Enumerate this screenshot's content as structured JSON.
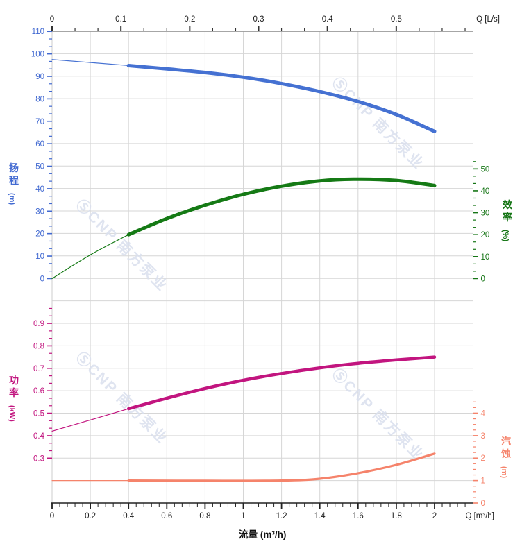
{
  "chart_data": {
    "type": "line",
    "x_bottom": {
      "title": "流量 (m³/h)",
      "corner_label": "Q [m³/h]",
      "ticks": [
        0,
        0.2,
        0.4,
        0.6,
        0.8,
        1,
        1.2,
        1.4,
        1.6,
        1.8,
        2
      ],
      "minor_step": 0.04,
      "range": [
        0,
        2.2
      ]
    },
    "x_top": {
      "corner_label": "Q [L/s]",
      "ticks": [
        0,
        0.1,
        0.2,
        0.3,
        0.4,
        0.5
      ],
      "minor_step": 0.03333,
      "range": [
        0,
        0.6
      ]
    },
    "y_axes": {
      "head": {
        "title": "扬程",
        "unit": "(m)",
        "color": "#4169d1",
        "ticks": [
          0,
          10,
          20,
          30,
          40,
          50,
          60,
          70,
          80,
          90,
          100,
          110
        ],
        "minor_step": 3.3333,
        "minor_range": [
          0,
          110
        ]
      },
      "eff": {
        "title": "效率",
        "unit": "(%)",
        "color": "#157515",
        "ticks": [
          0,
          10,
          20,
          30,
          40,
          50
        ],
        "minor_step": 3.3333,
        "minor_range": [
          0,
          53.4
        ]
      },
      "power": {
        "title": "功率",
        "unit": "(kW)",
        "color": "#c2157f",
        "ticks": [
          0.3,
          0.4,
          0.5,
          0.6,
          0.7,
          0.8,
          0.9
        ],
        "minor_step": 0.03333,
        "minor_range": [
          0.3,
          0.967
        ]
      },
      "npsh": {
        "title": "汽蚀",
        "unit": "(m)",
        "color": "#f5836b",
        "ticks": [
          0,
          1,
          2,
          3,
          4
        ],
        "minor_step": 0.25,
        "minor_range": [
          0,
          4.5
        ]
      }
    },
    "series": [
      {
        "id": "head-curve",
        "axis": "head",
        "color": "#4571d2",
        "width": 5,
        "thin": [
          [
            0,
            97.5
          ],
          [
            0.4,
            94.8
          ]
        ],
        "points": [
          [
            0.4,
            94.8
          ],
          [
            0.6,
            93.3
          ],
          [
            0.8,
            91.7
          ],
          [
            1,
            89.6
          ],
          [
            1.2,
            86.8
          ],
          [
            1.4,
            83.2
          ],
          [
            1.6,
            78.8
          ],
          [
            1.8,
            73
          ],
          [
            2,
            65.5
          ]
        ]
      },
      {
        "id": "efficiency-curve",
        "axis": "eff",
        "color": "#157a15",
        "width": 5,
        "thin": [
          [
            0,
            0
          ],
          [
            0.2,
            10.8
          ],
          [
            0.4,
            20
          ]
        ],
        "points": [
          [
            0.4,
            20
          ],
          [
            0.6,
            27.3
          ],
          [
            0.8,
            33.4
          ],
          [
            1,
            38.4
          ],
          [
            1.2,
            42.1
          ],
          [
            1.4,
            44.5
          ],
          [
            1.6,
            45.3
          ],
          [
            1.8,
            44.7
          ],
          [
            2,
            42.4
          ]
        ]
      },
      {
        "id": "power-curve",
        "axis": "power",
        "color": "#c2157f",
        "width": 4.5,
        "thin": [
          [
            0,
            0.42
          ],
          [
            0.4,
            0.52
          ]
        ],
        "points": [
          [
            0.4,
            0.52
          ],
          [
            0.6,
            0.567
          ],
          [
            0.8,
            0.61
          ],
          [
            1,
            0.647
          ],
          [
            1.2,
            0.677
          ],
          [
            1.4,
            0.702
          ],
          [
            1.6,
            0.722
          ],
          [
            1.8,
            0.737
          ],
          [
            2,
            0.75
          ]
        ]
      },
      {
        "id": "npsh-curve",
        "axis": "npsh",
        "color": "#f5836b",
        "width": 3.2,
        "thin": [
          [
            0,
            1.0
          ],
          [
            0.4,
            1.0
          ]
        ],
        "points": [
          [
            0.4,
            1.0
          ],
          [
            0.8,
            0.99
          ],
          [
            1.2,
            1.0
          ],
          [
            1.4,
            1.08
          ],
          [
            1.6,
            1.33
          ],
          [
            1.8,
            1.7
          ],
          [
            2,
            2.2
          ]
        ]
      }
    ],
    "watermark": {
      "text": "ⓈCNP 南方泵业",
      "color": "#d9dfed"
    },
    "grid": {
      "color": "#d6d6d6",
      "on": true
    },
    "frame": {
      "top_axis_color": "#9a9a9a",
      "bottom_axis_color": "#222222",
      "side_color": "#cccccc",
      "tick_text_color": "#1a1a1a"
    }
  }
}
